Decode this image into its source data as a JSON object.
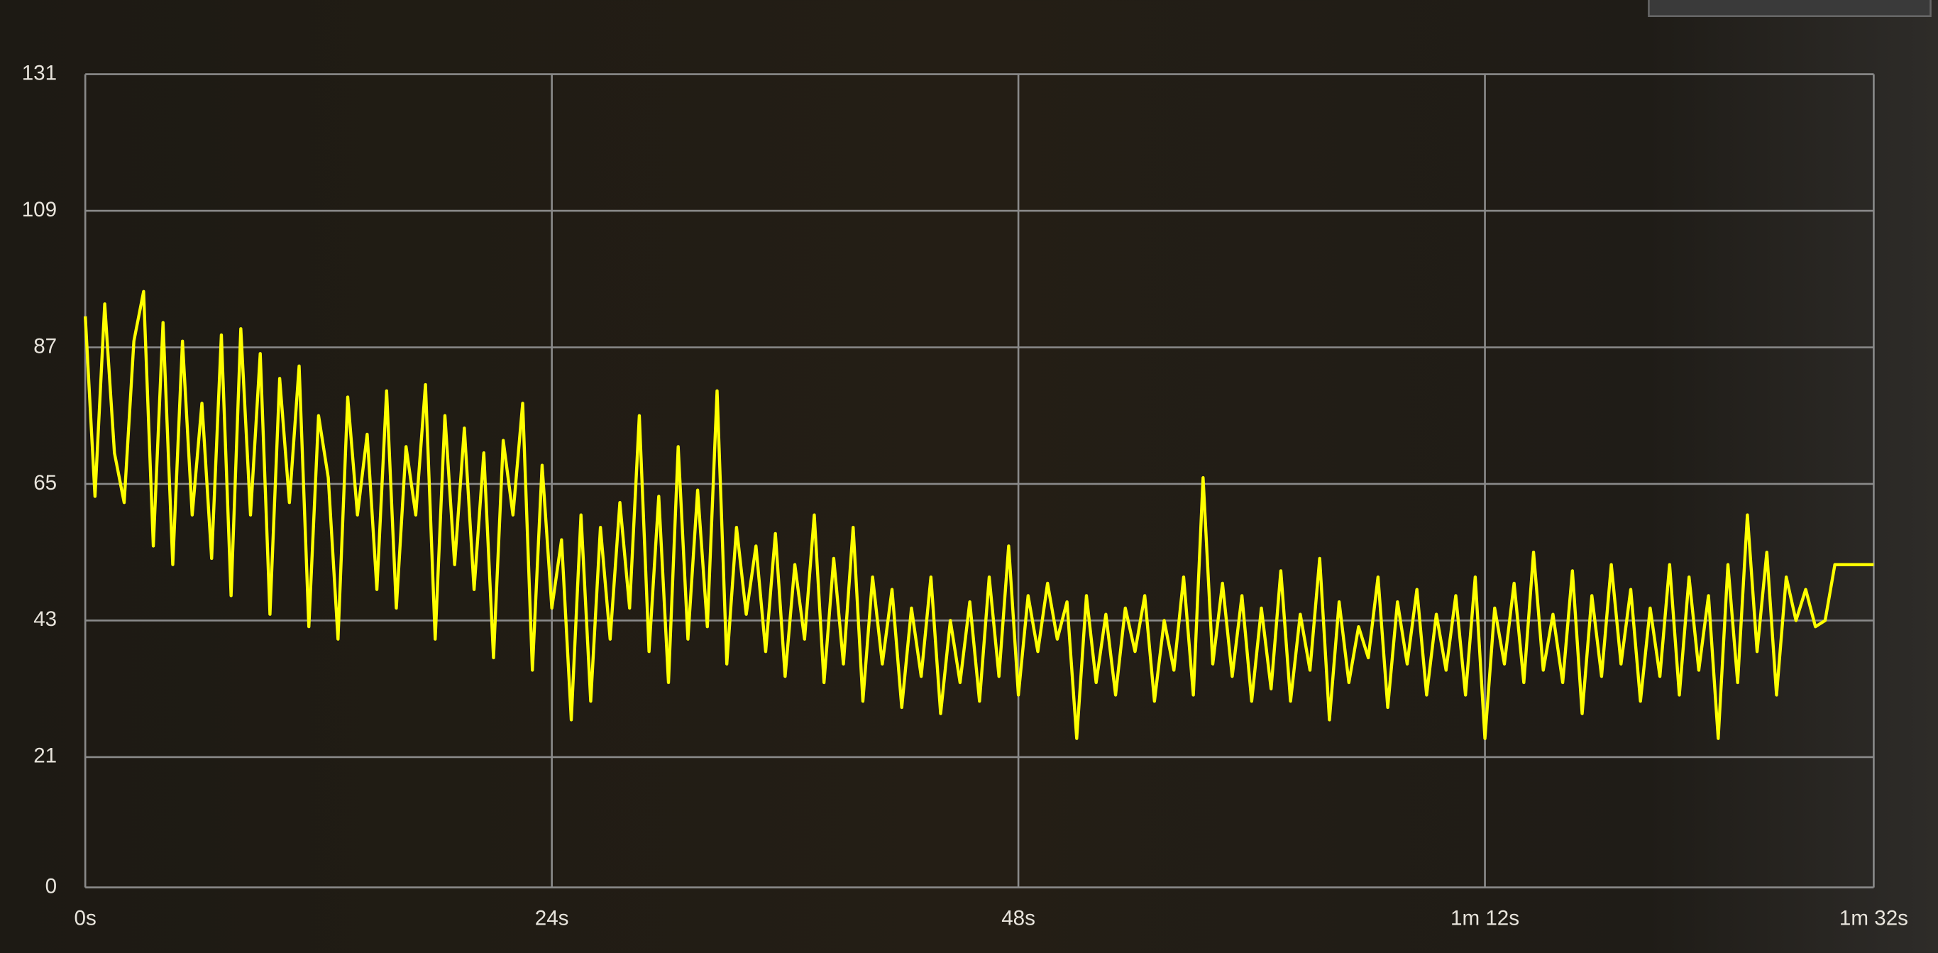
{
  "chart_data": {
    "type": "line",
    "x": [
      0,
      0.5,
      1,
      1.5,
      2,
      2.5,
      3,
      3.5,
      4,
      4.5,
      5,
      5.5,
      6,
      6.5,
      7,
      7.5,
      8,
      8.5,
      9,
      9.5,
      10,
      10.5,
      11,
      11.5,
      12,
      12.5,
      13,
      13.5,
      14,
      14.5,
      15,
      15.5,
      16,
      16.5,
      17,
      17.5,
      18,
      18.5,
      19,
      19.5,
      20,
      20.5,
      21,
      21.5,
      22,
      22.5,
      23,
      23.5,
      24,
      24.5,
      25,
      25.5,
      26,
      26.5,
      27,
      27.5,
      28,
      28.5,
      29,
      29.5,
      30,
      30.5,
      31,
      31.5,
      32,
      32.5,
      33,
      33.5,
      34,
      34.5,
      35,
      35.5,
      36,
      36.5,
      37,
      37.5,
      38,
      38.5,
      39,
      39.5,
      40,
      40.5,
      41,
      41.5,
      42,
      42.5,
      43,
      43.5,
      44,
      44.5,
      45,
      45.5,
      46,
      46.5,
      47,
      47.5,
      48,
      48.5,
      49,
      49.5,
      50,
      50.5,
      51,
      51.5,
      52,
      52.5,
      53,
      53.5,
      54,
      54.5,
      55,
      55.5,
      56,
      56.5,
      57,
      57.5,
      58,
      58.5,
      59,
      59.5,
      60,
      60.5,
      61,
      61.5,
      62,
      62.5,
      63,
      63.5,
      64,
      64.5,
      65,
      65.5,
      66,
      66.5,
      67,
      67.5,
      68,
      68.5,
      69,
      69.5,
      70,
      70.5,
      71,
      71.5,
      72,
      72.5,
      73,
      73.5,
      74,
      74.5,
      75,
      75.5,
      76,
      76.5,
      77,
      77.5,
      78,
      78.5,
      79,
      79.5,
      80,
      80.5,
      81,
      81.5,
      82,
      82.5,
      83,
      83.5,
      84,
      84.5,
      85,
      85.5,
      86,
      86.5,
      87,
      87.5,
      88,
      88.5,
      89,
      89.5,
      90,
      92
    ],
    "values": [
      92,
      63,
      94,
      70,
      62,
      88,
      96,
      55,
      91,
      52,
      88,
      60,
      78,
      53,
      89,
      47,
      90,
      60,
      86,
      44,
      82,
      62,
      84,
      42,
      76,
      66,
      40,
      79,
      60,
      73,
      48,
      80,
      45,
      71,
      60,
      81,
      40,
      76,
      52,
      74,
      48,
      70,
      37,
      72,
      60,
      78,
      35,
      68,
      45,
      56,
      27,
      60,
      30,
      58,
      40,
      62,
      45,
      76,
      38,
      63,
      33,
      71,
      40,
      64,
      42,
      80,
      36,
      58,
      44,
      55,
      38,
      57,
      34,
      52,
      40,
      60,
      33,
      53,
      36,
      58,
      30,
      50,
      36,
      48,
      29,
      45,
      34,
      50,
      28,
      43,
      33,
      46,
      30,
      50,
      34,
      55,
      31,
      47,
      38,
      49,
      40,
      46,
      24,
      47,
      33,
      44,
      31,
      45,
      38,
      47,
      30,
      43,
      35,
      50,
      31,
      66,
      36,
      49,
      34,
      47,
      30,
      45,
      32,
      51,
      30,
      44,
      35,
      53,
      27,
      46,
      33,
      42,
      37,
      50,
      29,
      46,
      36,
      48,
      31,
      44,
      35,
      47,
      31,
      50,
      24,
      45,
      36,
      49,
      33,
      54,
      35,
      44,
      33,
      51,
      28,
      47,
      34,
      52,
      36,
      48,
      30,
      45,
      34,
      52,
      31,
      50,
      35,
      47,
      24,
      52,
      33,
      60,
      38,
      54,
      31,
      50,
      43,
      48,
      42,
      43,
      52,
      52
    ],
    "color": "#ffff00",
    "xlim": [
      0,
      92
    ],
    "xticks": [
      {
        "value": 0,
        "label": "0s"
      },
      {
        "value": 24,
        "label": "24s"
      },
      {
        "value": 48,
        "label": "48s"
      },
      {
        "value": 72,
        "label": "1m 12s"
      },
      {
        "value": 92,
        "label": "1m 32s"
      }
    ],
    "ylim": [
      0,
      131
    ],
    "yticks": [
      0,
      21,
      43,
      65,
      87,
      109,
      131
    ],
    "grid": true
  }
}
